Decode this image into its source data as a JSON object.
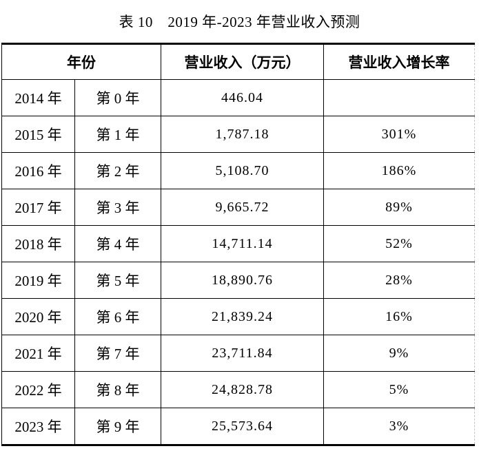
{
  "page": {
    "title": "表 10　2019 年-2023 年营业收入预测"
  },
  "colors": {
    "text": "#000000",
    "grid_line": "#000000",
    "thick_rule": "#000000",
    "dashed_right_edge": "#c4c4c4",
    "background": "#ffffff"
  },
  "table": {
    "headers": {
      "year": "年份",
      "revenue": "营业收入（万元）",
      "growth": "营业收入增长率"
    },
    "rows": [
      {
        "year": "2014 年",
        "period": "第 0 年",
        "revenue": "446.04",
        "growth": ""
      },
      {
        "year": "2015 年",
        "period": "第 1 年",
        "revenue": "1,787.18",
        "growth": "301%"
      },
      {
        "year": "2016 年",
        "period": "第 2 年",
        "revenue": "5,108.70",
        "growth": "186%"
      },
      {
        "year": "2017 年",
        "period": "第 3 年",
        "revenue": "9,665.72",
        "growth": "89%"
      },
      {
        "year": "2018 年",
        "period": "第 4 年",
        "revenue": "14,711.14",
        "growth": "52%"
      },
      {
        "year": "2019 年",
        "period": "第 5 年",
        "revenue": "18,890.76",
        "growth": "28%"
      },
      {
        "year": "2020 年",
        "period": "第 6 年",
        "revenue": "21,839.24",
        "growth": "16%"
      },
      {
        "year": "2021 年",
        "period": "第 7 年",
        "revenue": "23,711.84",
        "growth": "9%"
      },
      {
        "year": "2022 年",
        "period": "第 8 年",
        "revenue": "24,828.78",
        "growth": "5%"
      },
      {
        "year": "2023 年",
        "period": "第 9 年",
        "revenue": "25,573.64",
        "growth": "3%"
      }
    ]
  }
}
